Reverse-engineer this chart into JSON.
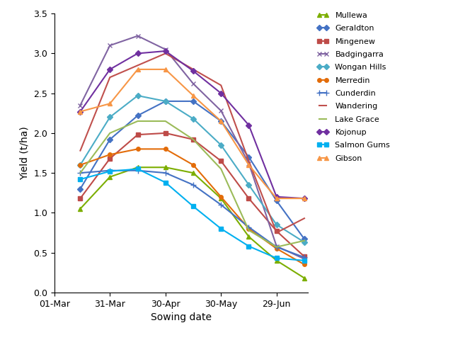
{
  "xlabel": "Sowing date",
  "ylabel": "Yield (t/ha)",
  "ylim": [
    0.0,
    3.5
  ],
  "yticks": [
    0.0,
    0.5,
    1.0,
    1.5,
    2.0,
    2.5,
    3.0,
    3.5
  ],
  "xlim": [
    1,
    138
  ],
  "xticks_positions": [
    1,
    31,
    61,
    91,
    121
  ],
  "xticks_labels": [
    "01-Mar",
    "31-Mar",
    "30-Apr",
    "30-May",
    "29-Jun"
  ],
  "locations": [
    {
      "name": "Mullewa",
      "color": "#7CAE00",
      "marker": "^",
      "markersize": 4,
      "x": [
        15,
        31,
        46,
        61,
        76,
        91,
        106,
        121,
        136
      ],
      "y": [
        1.05,
        1.45,
        1.57,
        1.57,
        1.5,
        1.18,
        0.7,
        0.4,
        0.18
      ]
    },
    {
      "name": "Geraldton",
      "color": "#4472C4",
      "marker": "D",
      "markersize": 4,
      "x": [
        15,
        31,
        46,
        61,
        76,
        91,
        106,
        121,
        136
      ],
      "y": [
        1.3,
        1.92,
        2.22,
        2.4,
        2.4,
        2.15,
        1.7,
        1.15,
        0.67
      ]
    },
    {
      "name": "Mingenew",
      "color": "#BE4B48",
      "marker": "s",
      "markersize": 4,
      "x": [
        15,
        31,
        46,
        61,
        76,
        91,
        106,
        121,
        136
      ],
      "y": [
        1.18,
        1.68,
        1.98,
        2.0,
        1.92,
        1.65,
        1.18,
        0.77,
        0.45
      ]
    },
    {
      "name": "Badgingarra",
      "color": "#8064A2",
      "marker": "x",
      "markersize": 5,
      "x": [
        15,
        31,
        46,
        61,
        76,
        91,
        106,
        121,
        136
      ],
      "y": [
        2.35,
        3.1,
        3.22,
        3.05,
        2.62,
        2.28,
        1.62,
        0.58,
        0.42
      ]
    },
    {
      "name": "Wongan Hills",
      "color": "#4BACC6",
      "marker": "D",
      "markersize": 4,
      "x": [
        15,
        31,
        46,
        61,
        76,
        91,
        106,
        121,
        136
      ],
      "y": [
        1.6,
        2.2,
        2.47,
        2.4,
        2.18,
        1.85,
        1.35,
        0.85,
        0.63
      ]
    },
    {
      "name": "Merredin",
      "color": "#E36C09",
      "marker": "o",
      "markersize": 4,
      "x": [
        15,
        31,
        46,
        61,
        76,
        91,
        106,
        121,
        136
      ],
      "y": [
        1.6,
        1.73,
        1.8,
        1.8,
        1.6,
        1.2,
        0.8,
        0.55,
        0.35
      ]
    },
    {
      "name": "Cunderdin",
      "color": "#4472C4",
      "marker": "+",
      "markersize": 6,
      "x": [
        15,
        31,
        46,
        61,
        76,
        91,
        106,
        121,
        136
      ],
      "y": [
        1.5,
        1.53,
        1.53,
        1.5,
        1.35,
        1.1,
        0.82,
        0.57,
        0.44
      ]
    },
    {
      "name": "Wandering",
      "color": "#C0504D",
      "marker": "",
      "markersize": 0,
      "x": [
        15,
        31,
        46,
        61,
        76,
        91,
        106,
        121,
        136
      ],
      "y": [
        1.78,
        2.7,
        2.85,
        3.0,
        2.8,
        2.6,
        1.65,
        0.75,
        0.93
      ]
    },
    {
      "name": "Lake Grace",
      "color": "#9BBB59",
      "marker": "",
      "markersize": 0,
      "x": [
        15,
        31,
        46,
        61,
        76,
        91,
        106,
        121,
        136
      ],
      "y": [
        1.5,
        2.0,
        2.15,
        2.15,
        1.92,
        1.55,
        0.78,
        0.57,
        0.65
      ]
    },
    {
      "name": "Kojonup",
      "color": "#7030A0",
      "marker": "D",
      "markersize": 4,
      "x": [
        15,
        31,
        46,
        61,
        76,
        91,
        106,
        121,
        136
      ],
      "y": [
        2.27,
        2.8,
        3.0,
        3.03,
        2.78,
        2.5,
        2.1,
        1.2,
        1.18
      ]
    },
    {
      "name": "Salmon Gums",
      "color": "#00B0F0",
      "marker": "s",
      "markersize": 4,
      "x": [
        15,
        31,
        46,
        61,
        76,
        91,
        106,
        121,
        136
      ],
      "y": [
        1.42,
        1.52,
        1.55,
        1.38,
        1.08,
        0.8,
        0.58,
        0.43,
        0.4
      ]
    },
    {
      "name": "Gibson",
      "color": "#F79646",
      "marker": "^",
      "markersize": 4,
      "x": [
        15,
        31,
        46,
        61,
        76,
        91,
        106,
        121,
        136
      ],
      "y": [
        2.27,
        2.37,
        2.8,
        2.8,
        2.47,
        2.15,
        1.6,
        1.18,
        1.18
      ]
    }
  ]
}
